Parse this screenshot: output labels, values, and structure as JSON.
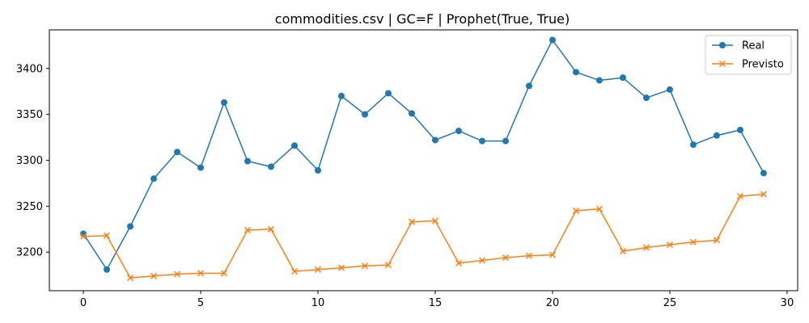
{
  "chart_data": {
    "type": "line",
    "title": "commodities.csv | GC=F | Prophet(True, True)",
    "xlabel": "",
    "ylabel": "",
    "xlim": [
      -1.45,
      30.45
    ],
    "ylim": [
      3158,
      3442
    ],
    "x_ticks": [
      0,
      5,
      10,
      15,
      20,
      25,
      30
    ],
    "y_ticks": [
      3200,
      3250,
      3300,
      3350,
      3400
    ],
    "grid": false,
    "legend_position": "top-right",
    "x": [
      0,
      1,
      2,
      3,
      4,
      5,
      6,
      7,
      8,
      9,
      10,
      11,
      12,
      13,
      14,
      15,
      16,
      17,
      18,
      19,
      20,
      21,
      22,
      23,
      24,
      25,
      26,
      27,
      28,
      29
    ],
    "series": [
      {
        "name": "Real",
        "color": "#1f77b4",
        "marker": "circle",
        "values": [
          3220,
          3181,
          3228,
          3280,
          3309,
          3292,
          3363,
          3299,
          3293,
          3316,
          3289,
          3370,
          3350,
          3373,
          3351,
          3322,
          3332,
          3321,
          3321,
          3381,
          3431,
          3396,
          3387,
          3390,
          3368,
          3377,
          3317,
          3327,
          3333,
          3286
        ]
      },
      {
        "name": "Previsto",
        "color": "#ff7f0e",
        "marker": "x",
        "values": [
          3217,
          3218,
          3172,
          3174,
          3176,
          3177,
          3177,
          3224,
          3225,
          3179,
          3181,
          3183,
          3185,
          3186,
          3233,
          3234,
          3188,
          3191,
          3194,
          3196,
          3197,
          3245,
          3247,
          3201,
          3205,
          3208,
          3211,
          3213,
          3261,
          3263
        ]
      }
    ]
  }
}
